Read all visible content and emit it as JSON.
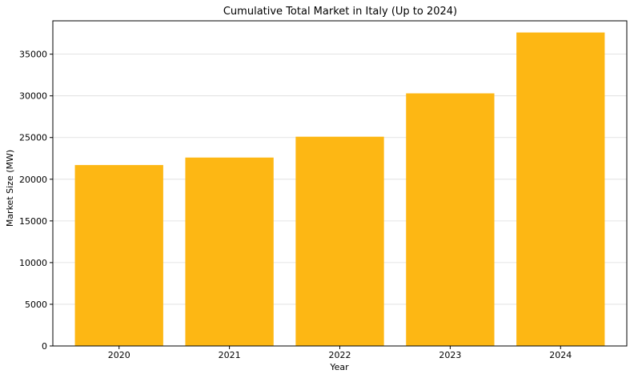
{
  "chart_data": {
    "type": "bar",
    "title": "Cumulative Total Market in Italy (Up to 2024)",
    "xlabel": "Year",
    "ylabel": "Market Size (MW)",
    "categories": [
      "2020",
      "2021",
      "2022",
      "2023",
      "2024"
    ],
    "values": [
      21700,
      22600,
      25100,
      30300,
      37600
    ],
    "ylim": [
      0,
      39000
    ],
    "yticks": [
      0,
      5000,
      10000,
      15000,
      20000,
      25000,
      30000,
      35000
    ],
    "grid": "y",
    "bar_color": "#FDB714"
  }
}
